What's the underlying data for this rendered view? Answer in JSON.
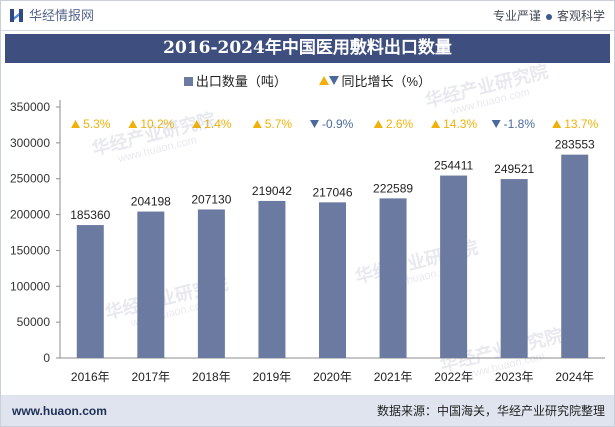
{
  "header": {
    "site_name": "华经情报网",
    "slogan_left": "专业严谨",
    "slogan_right": "客观科学"
  },
  "colors": {
    "title_bar": "#3d4e7f",
    "bar": "#6b7aa1",
    "growth_up": "#f0b10a",
    "growth_down": "#4a6a9c",
    "footer_bg": "#dfe4ee"
  },
  "icons": {
    "logo": "huajing-logo-icon",
    "legend_up": "triangle-up-icon",
    "legend_down": "triangle-down-icon"
  },
  "chart_data": {
    "type": "bar",
    "title": "2016-2024年中国医用敷料出口数量",
    "categories": [
      "2016年",
      "2017年",
      "2018年",
      "2019年",
      "2020年",
      "2021年",
      "2022年",
      "2023年",
      "2024年"
    ],
    "series": [
      {
        "name": "出口数量（吨）",
        "values": [
          185360,
          204198,
          207130,
          219042,
          217046,
          222589,
          254411,
          249521,
          283553
        ]
      },
      {
        "name": "同比增长（%）",
        "values": [
          5.3,
          10.2,
          1.4,
          5.7,
          -0.9,
          2.6,
          14.3,
          -1.8,
          13.7
        ],
        "unit": "%"
      }
    ],
    "ylim": [
      0,
      350000
    ],
    "yticks": [
      0,
      50000,
      100000,
      150000,
      200000,
      250000,
      300000,
      350000
    ],
    "grid": false,
    "legend_position": "top-center",
    "data_labels": true
  },
  "watermark": {
    "name": "华经产业研究院",
    "url": "www.huaon.com"
  },
  "footer": {
    "website": "www.huaon.com",
    "source": "数据来源：中国海关，华经产业研究院整理"
  }
}
